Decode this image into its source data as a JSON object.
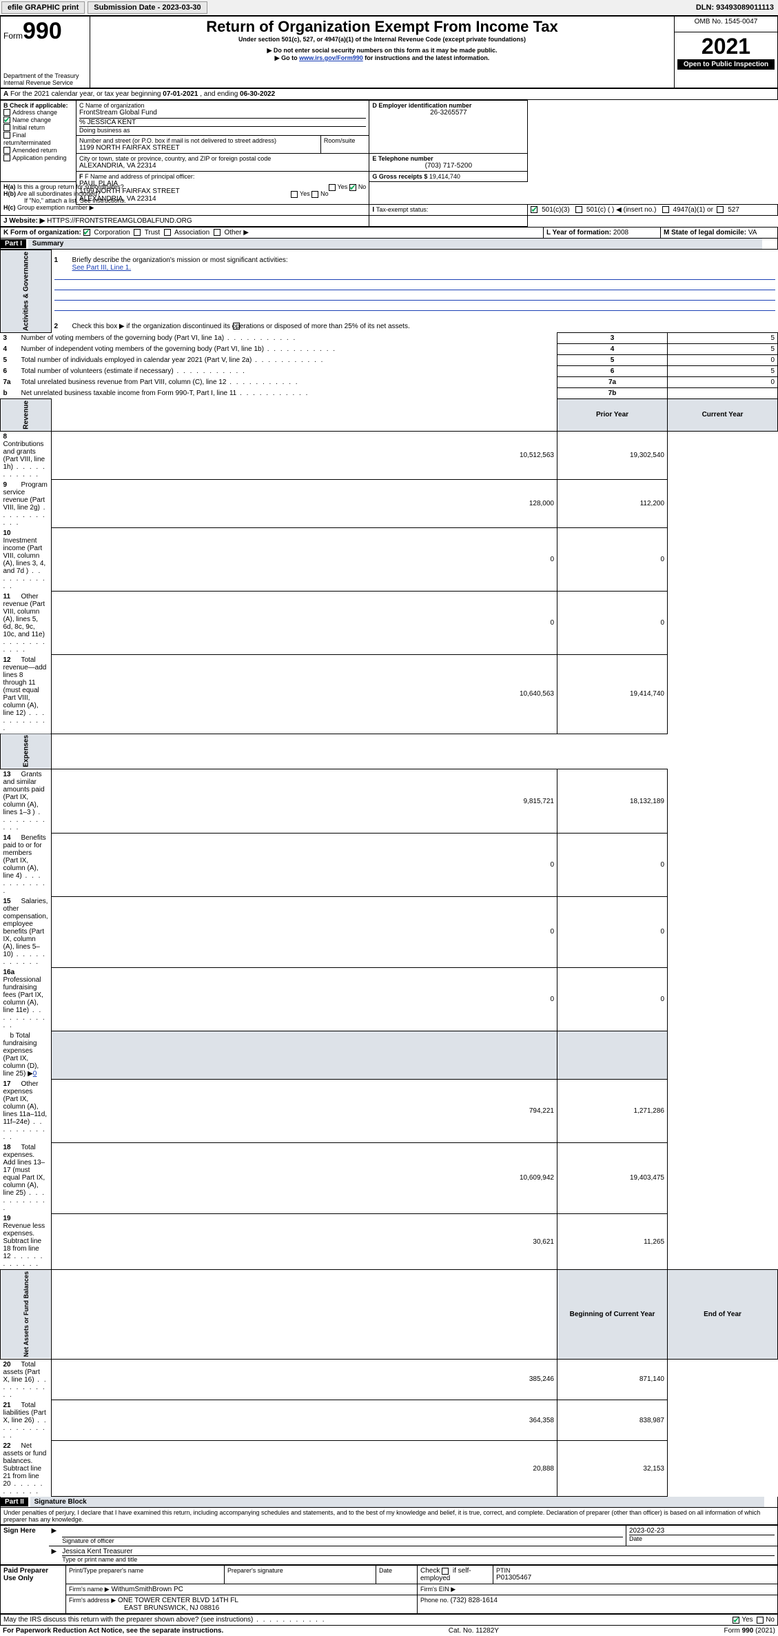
{
  "topbar": {
    "efile": "efile GRAPHIC print",
    "submission_label": "Submission Date - ",
    "submission_date": "2023-03-30",
    "dln": "DLN: 93493089011113"
  },
  "header": {
    "form_word": "Form",
    "form_num": "990",
    "dept": "Department of the Treasury",
    "irs": "Internal Revenue Service",
    "title": "Return of Organization Exempt From Income Tax",
    "subtitle": "Under section 501(c), 527, or 4947(a)(1) of the Internal Revenue Code (except private foundations)",
    "note1": "▶ Do not enter social security numbers on this form as it may be made public.",
    "note2_pre": "▶ Go to ",
    "note2_link": "www.irs.gov/Form990",
    "note2_post": " for instructions and the latest information.",
    "omb": "OMB No. 1545-0047",
    "year": "2021",
    "open_public": "Open to Public Inspection"
  },
  "line_a": {
    "text_pre": "For the 2021 calendar year, or tax year beginning ",
    "begin": "07-01-2021",
    "mid": " , and ending ",
    "end": "06-30-2022"
  },
  "box_b": {
    "label": "B Check if applicable:",
    "addr_change": "Address change",
    "name_change": "Name change",
    "initial": "Initial return",
    "final": "Final return/terminated",
    "amended": "Amended return",
    "app_pending": "Application pending"
  },
  "box_c": {
    "label": "C Name of organization",
    "org_name": "FrontStream Global Fund",
    "care_of": "% JESSICA KENT",
    "dba_label": "Doing business as",
    "street_label": "Number and street (or P.O. box if mail is not delivered to street address)",
    "room_label": "Room/suite",
    "street": "1199 NORTH FAIRFAX STREET",
    "city_label": "City or town, state or province, country, and ZIP or foreign postal code",
    "city": "ALEXANDRIA, VA  22314"
  },
  "box_d": {
    "label": "D Employer identification number",
    "ein": "26-3265577"
  },
  "box_e": {
    "label": "E Telephone number",
    "phone": "(703) 717-5200"
  },
  "box_g": {
    "label": "G Gross receipts $ ",
    "amount": "19,414,740"
  },
  "box_f": {
    "label": "F  Name and address of principal officer:",
    "name": "PAUL PLAIA",
    "street": "1199 NORTH FAIRFAX STREET",
    "city": "ALEXANDRIA, VA  22314"
  },
  "box_h": {
    "a_label": "H(a)  Is this a group return for subordinates?",
    "yes": "Yes",
    "no": "No",
    "b_label": "H(b)  Are all subordinates included?",
    "b_note": "If \"No,\" attach a list. See instructions.",
    "c_label": "H(c)  Group exemption number ▶"
  },
  "line_i": {
    "label": "Tax-exempt status:",
    "c3": "501(c)(3)",
    "c": "501(c) (   ) ◀ (insert no.)",
    "a1": "4947(a)(1) or",
    "s527": "527"
  },
  "line_j": {
    "label": "Website: ▶",
    "url": "HTTPS://FRONTSTREAMGLOBALFUND.ORG"
  },
  "line_k": {
    "label": "K Form of organization:",
    "corp": "Corporation",
    "trust": "Trust",
    "assoc": "Association",
    "other": "Other ▶"
  },
  "line_l": {
    "label": "L Year of formation: ",
    "val": "2008"
  },
  "line_m": {
    "label": "M State of legal domicile: ",
    "val": "VA"
  },
  "part1": {
    "hdr": "Part I",
    "title": "Summary",
    "l1": "Briefly describe the organization's mission or most significant activities:",
    "l1_text": "See Part III, Line 1.",
    "l2": "Check this box ▶        if the organization discontinued its operations or disposed of more than 25% of its net assets.",
    "rows_single": [
      {
        "n": "3",
        "t": "Number of voting members of the governing body (Part VI, line 1a)",
        "box": "3",
        "v": "5"
      },
      {
        "n": "4",
        "t": "Number of independent voting members of the governing body (Part VI, line 1b)",
        "box": "4",
        "v": "5"
      },
      {
        "n": "5",
        "t": "Total number of individuals employed in calendar year 2021 (Part V, line 2a)",
        "box": "5",
        "v": "0"
      },
      {
        "n": "6",
        "t": "Total number of volunteers (estimate if necessary)",
        "box": "6",
        "v": "5"
      },
      {
        "n": "7a",
        "t": "Total unrelated business revenue from Part VIII, column (C), line 12",
        "box": "7a",
        "v": "0"
      },
      {
        "n": "b",
        "t": "Net unrelated business taxable income from Form 990-T, Part I, line 11",
        "box": "7b",
        "v": ""
      }
    ],
    "col_prior": "Prior Year",
    "col_current": "Current Year",
    "revenue_rows": [
      {
        "n": "8",
        "t": "Contributions and grants (Part VIII, line 1h)",
        "p": "10,512,563",
        "c": "19,302,540"
      },
      {
        "n": "9",
        "t": "Program service revenue (Part VIII, line 2g)",
        "p": "128,000",
        "c": "112,200"
      },
      {
        "n": "10",
        "t": "Investment income (Part VIII, column (A), lines 3, 4, and 7d )",
        "p": "0",
        "c": "0"
      },
      {
        "n": "11",
        "t": "Other revenue (Part VIII, column (A), lines 5, 6d, 8c, 9c, 10c, and 11e)",
        "p": "0",
        "c": "0"
      },
      {
        "n": "12",
        "t": "Total revenue—add lines 8 through 11 (must equal Part VIII, column (A), line 12)",
        "p": "10,640,563",
        "c": "19,414,740"
      }
    ],
    "expense_rows": [
      {
        "n": "13",
        "t": "Grants and similar amounts paid (Part IX, column (A), lines 1–3 )",
        "p": "9,815,721",
        "c": "18,132,189"
      },
      {
        "n": "14",
        "t": "Benefits paid to or for members (Part IX, column (A), line 4)",
        "p": "0",
        "c": "0"
      },
      {
        "n": "15",
        "t": "Salaries, other compensation, employee benefits (Part IX, column (A), lines 5–10)",
        "p": "0",
        "c": "0"
      },
      {
        "n": "16a",
        "t": "Professional fundraising fees (Part IX, column (A), line 11e)",
        "p": "0",
        "c": "0"
      }
    ],
    "line16b_pre": "b   Total fundraising expenses (Part IX, column (D), line 25) ▶",
    "line16b_val": "0",
    "expense_rows2": [
      {
        "n": "17",
        "t": "Other expenses (Part IX, column (A), lines 11a–11d, 11f–24e)",
        "p": "794,221",
        "c": "1,271,286"
      },
      {
        "n": "18",
        "t": "Total expenses. Add lines 13–17 (must equal Part IX, column (A), line 25)",
        "p": "10,609,942",
        "c": "19,403,475"
      },
      {
        "n": "19",
        "t": "Revenue less expenses. Subtract line 18 from line 12",
        "p": "30,621",
        "c": "11,265"
      }
    ],
    "col_begin": "Beginning of Current Year",
    "col_end": "End of Year",
    "net_rows": [
      {
        "n": "20",
        "t": "Total assets (Part X, line 16)",
        "p": "385,246",
        "c": "871,140"
      },
      {
        "n": "21",
        "t": "Total liabilities (Part X, line 26)",
        "p": "364,358",
        "c": "838,987"
      },
      {
        "n": "22",
        "t": "Net assets or fund balances. Subtract line 21 from line 20",
        "p": "20,888",
        "c": "32,153"
      }
    ],
    "vlabel_gov": "Activities & Governance",
    "vlabel_rev": "Revenue",
    "vlabel_exp": "Expenses",
    "vlabel_net": "Net Assets or Fund Balances"
  },
  "part2": {
    "hdr": "Part II",
    "title": "Signature Block",
    "decl": "Under penalties of perjury, I declare that I have examined this return, including accompanying schedules and statements, and to the best of my knowledge and belief, it is true, correct, and complete. Declaration of preparer (other than officer) is based on all information of which preparer has any knowledge.",
    "sign_here": "Sign Here",
    "sig_officer": "Signature of officer",
    "date_label": "Date",
    "sig_date": "2023-02-23",
    "officer_name": "Jessica Kent  Treasurer",
    "type_name": "Type or print name and title",
    "paid_prep": "Paid Preparer Use Only",
    "prep_name_label": "Print/Type preparer's name",
    "prep_sig_label": "Preparer's signature",
    "check_self": "Check        if self-employed",
    "ptin_label": "PTIN",
    "ptin": "P01305467",
    "firm_name_label": "Firm's name    ▶",
    "firm_name": "WithumSmithBrown PC",
    "firm_ein_label": "Firm's EIN ▶",
    "firm_addr_label": "Firm's address ▶",
    "firm_addr1": "ONE TOWER CENTER BLVD 14TH FL",
    "firm_addr2": "EAST BRUNSWICK, NJ  08816",
    "phone_label": "Phone no. ",
    "phone": "(732) 828-1614",
    "discuss": "May the IRS discuss this return with the preparer shown above? (see instructions)"
  },
  "footer": {
    "left": "For Paperwork Reduction Act Notice, see the separate instructions.",
    "mid": "Cat. No. 11282Y",
    "right": "Form 990 (2021)"
  },
  "colors": {
    "link": "#1a3fb5",
    "shade": "#DDE2E8",
    "check": "#0a5"
  }
}
